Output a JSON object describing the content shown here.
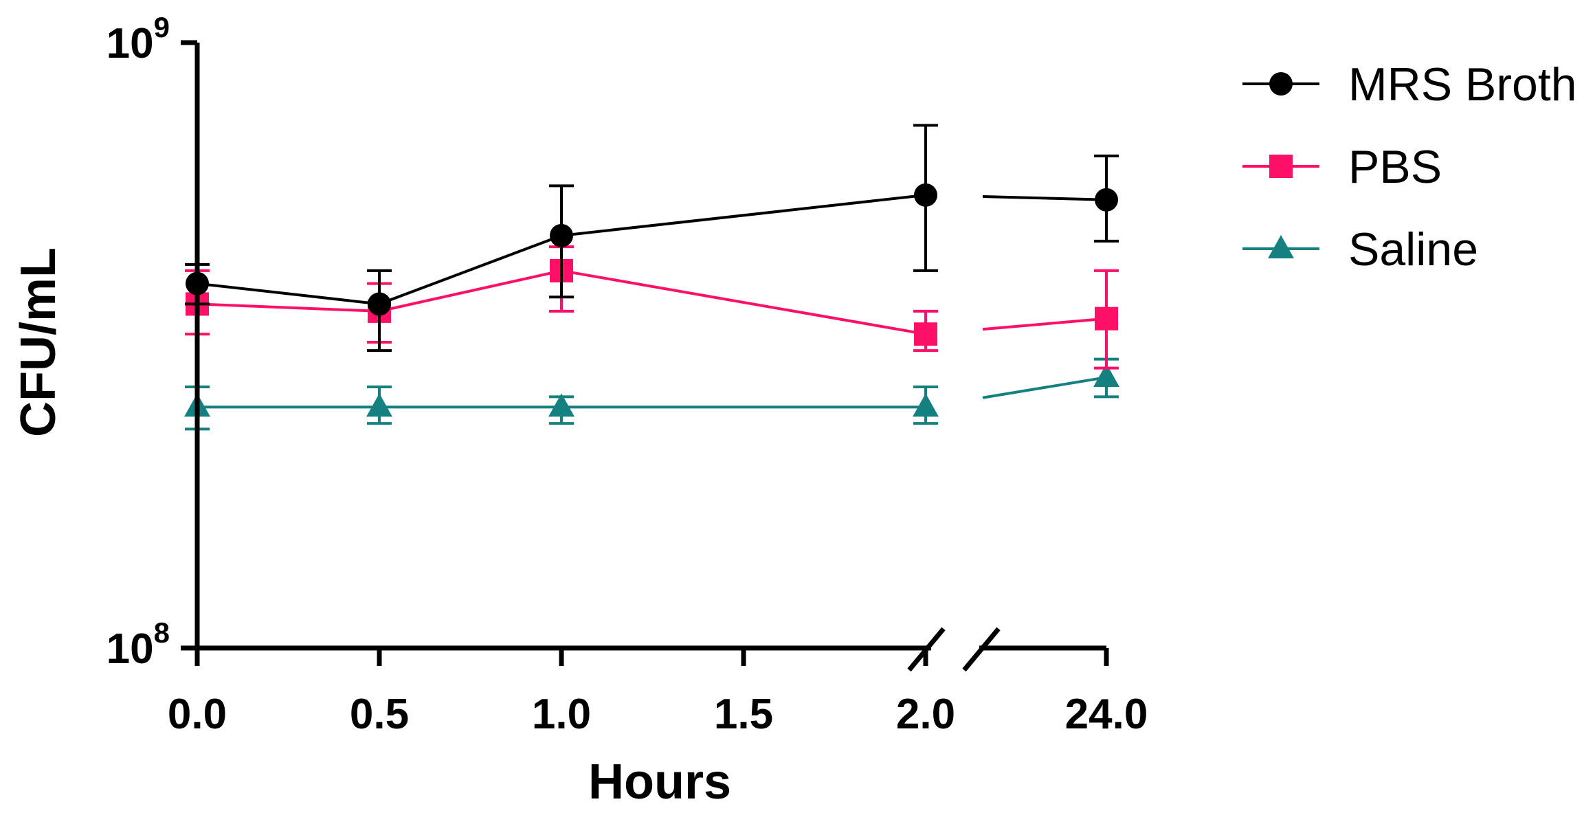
{
  "chart_data": {
    "type": "line",
    "xlabel": "Hours",
    "ylabel": "CFU/mL",
    "y_scale": "log",
    "ylim": [
      100000000,
      1000000000
    ],
    "y_tick_labels": [
      {
        "value": 100000000,
        "base": "10",
        "exp": "8"
      },
      {
        "value": 1000000000,
        "base": "10",
        "exp": "9"
      }
    ],
    "x_segments": [
      {
        "range": [
          0,
          2
        ],
        "ticks": [
          0,
          0.5,
          1,
          1.5,
          2
        ]
      },
      {
        "range": [
          24,
          24
        ],
        "ticks": [
          24
        ]
      }
    ],
    "x_tick_labels": [
      "0.0",
      "0.5",
      "1.0",
      "1.5",
      "2.0",
      "24.0"
    ],
    "axis_break": "between 2.0 and 24.0",
    "legend_position": "top-right",
    "series": [
      {
        "name": "MRS Broth",
        "color": "#000000",
        "marker": "circle",
        "points": [
          {
            "x": 0,
            "y": 400000000,
            "err_low": 370000000,
            "err_high": 430000000
          },
          {
            "x": 0.5,
            "y": 370000000,
            "err_low": 310000000,
            "err_high": 420000000
          },
          {
            "x": 1,
            "y": 480000000,
            "err_low": 380000000,
            "err_high": 580000000
          },
          {
            "x": 2,
            "y": 560000000,
            "err_low": 420000000,
            "err_high": 730000000
          },
          {
            "x": 24,
            "y": 550000000,
            "err_low": 470000000,
            "err_high": 650000000
          }
        ]
      },
      {
        "name": "PBS",
        "color": "#ff1068",
        "marker": "square",
        "points": [
          {
            "x": 0,
            "y": 370000000,
            "err_low": 330000000,
            "err_high": 420000000
          },
          {
            "x": 0.5,
            "y": 360000000,
            "err_low": 320000000,
            "err_high": 400000000
          },
          {
            "x": 1,
            "y": 420000000,
            "err_low": 360000000,
            "err_high": 460000000
          },
          {
            "x": 2,
            "y": 330000000,
            "err_low": 310000000,
            "err_high": 360000000
          },
          {
            "x": 24,
            "y": 350000000,
            "err_low": 290000000,
            "err_high": 420000000
          }
        ]
      },
      {
        "name": "Saline",
        "color": "#158080",
        "marker": "triangle",
        "points": [
          {
            "x": 0,
            "y": 250000000,
            "err_low": 230000000,
            "err_high": 270000000
          },
          {
            "x": 0.5,
            "y": 250000000,
            "err_low": 235000000,
            "err_high": 270000000
          },
          {
            "x": 1,
            "y": 250000000,
            "err_low": 235000000,
            "err_high": 260000000
          },
          {
            "x": 2,
            "y": 250000000,
            "err_low": 235000000,
            "err_high": 270000000
          },
          {
            "x": 24,
            "y": 280000000,
            "err_low": 260000000,
            "err_high": 300000000
          }
        ]
      }
    ]
  }
}
